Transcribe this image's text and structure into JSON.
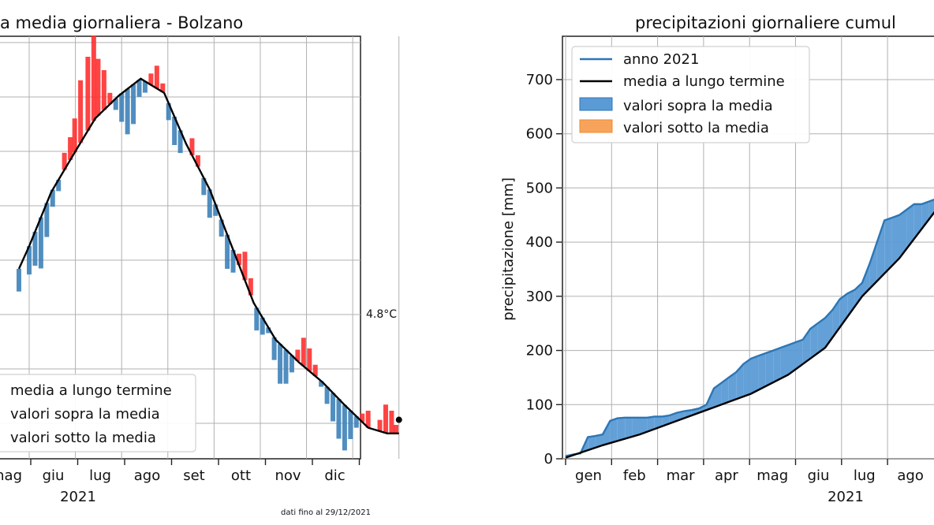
{
  "footnote": "dati fino al 29/12/2021",
  "chart_data": [
    {
      "type": "bar",
      "title": "a media giornaliera - Bolzano",
      "xlabel": "2021",
      "ylabel": "",
      "month_labels": [
        "mag",
        "giu",
        "lug",
        "ago",
        "set",
        "ott",
        "nov",
        "dic"
      ],
      "last_value_label": "4.8°C",
      "legend": [
        "media a lungo termine",
        "valori sopra la media",
        "valori sotto la media"
      ],
      "legend_placement": "bottom-left",
      "grid": true,
      "colors": {
        "mean": "#000000",
        "above": "#ff2b2b",
        "below": "#3a7fb8"
      },
      "mean_curve": [
        [
          -7,
          60
        ],
        [
          0,
          68
        ],
        [
          15,
          87
        ],
        [
          31,
          101
        ],
        [
          45,
          113
        ],
        [
          61,
          121
        ],
        [
          76,
          127
        ],
        [
          92,
          122
        ],
        [
          107,
          104
        ],
        [
          123,
          88
        ],
        [
          138,
          68
        ],
        [
          153,
          48
        ],
        [
          168,
          35
        ],
        [
          184,
          27
        ],
        [
          200,
          20
        ],
        [
          215,
          12
        ],
        [
          231,
          4
        ],
        [
          244,
          2
        ],
        [
          252,
          2
        ]
      ],
      "daily_deviation_segments": [
        [
          -7,
          -8
        ],
        [
          0,
          -10
        ],
        [
          4,
          -12
        ],
        [
          8,
          -18
        ],
        [
          12,
          -12
        ],
        [
          16,
          -6
        ],
        [
          20,
          -4
        ],
        [
          24,
          6
        ],
        [
          28,
          8
        ],
        [
          31,
          12
        ],
        [
          35,
          22
        ],
        [
          40,
          26
        ],
        [
          44,
          30
        ],
        [
          47,
          20
        ],
        [
          51,
          14
        ],
        [
          55,
          4
        ],
        [
          59,
          -4
        ],
        [
          63,
          -10
        ],
        [
          67,
          -16
        ],
        [
          71,
          -14
        ],
        [
          75,
          -6
        ],
        [
          79,
          -4
        ],
        [
          83,
          4
        ],
        [
          87,
          8
        ],
        [
          91,
          3
        ],
        [
          95,
          -6
        ],
        [
          99,
          -10
        ],
        [
          103,
          -8
        ],
        [
          107,
          0
        ],
        [
          111,
          6
        ],
        [
          115,
          4
        ],
        [
          119,
          -6
        ],
        [
          123,
          -10
        ],
        [
          127,
          -4
        ],
        [
          131,
          -6
        ],
        [
          135,
          -12
        ],
        [
          139,
          -8
        ],
        [
          143,
          4
        ],
        [
          147,
          10
        ],
        [
          151,
          6
        ],
        [
          155,
          -8
        ],
        [
          159,
          -6
        ],
        [
          163,
          -2
        ],
        [
          167,
          -8
        ],
        [
          171,
          -14
        ],
        [
          175,
          -12
        ],
        [
          179,
          -6
        ],
        [
          183,
          4
        ],
        [
          187,
          10
        ],
        [
          191,
          8
        ],
        [
          195,
          4
        ],
        [
          199,
          -2
        ],
        [
          203,
          -6
        ],
        [
          207,
          -10
        ],
        [
          211,
          -14
        ],
        [
          215,
          -16
        ],
        [
          219,
          -10
        ],
        [
          223,
          -4
        ],
        [
          227,
          3
        ],
        [
          231,
          6
        ],
        [
          235,
          0
        ],
        [
          239,
          4
        ],
        [
          243,
          10
        ],
        [
          247,
          8
        ],
        [
          250,
          3
        ]
      ],
      "last_point": [
        252,
        4.8
      ]
    },
    {
      "type": "area",
      "title": "precipitazioni giornaliere cumul",
      "xlabel": "2021",
      "ylabel": "precipitazione [mm]",
      "categories": [
        "gen",
        "feb",
        "mar",
        "apr",
        "mag",
        "giu",
        "lug",
        "ago"
      ],
      "yticks": [
        0,
        100,
        200,
        300,
        400,
        500,
        600,
        700
      ],
      "ylim": [
        0,
        780
      ],
      "legend": [
        "anno 2021",
        "media a lungo termine",
        "valori sopra la media",
        "valori sotto la media"
      ],
      "legend_placement": "top-left",
      "grid": true,
      "colors": {
        "year": "#1f77b4",
        "mean": "#000000",
        "above": "#1f77b4",
        "below": "#ff7f0e"
      },
      "series": [
        {
          "name": "anno 2021",
          "x": [
            0,
            1,
            2,
            3,
            4,
            5,
            6,
            7,
            8,
            9,
            10,
            11,
            12,
            13,
            14,
            15,
            16,
            17,
            18,
            19,
            20,
            21,
            22,
            23,
            24,
            25,
            26,
            27,
            28,
            29,
            30,
            31,
            32,
            33,
            34,
            35,
            36,
            37,
            38,
            39,
            40,
            41,
            42,
            43,
            44,
            45,
            46,
            47,
            48,
            49,
            50
          ],
          "values": [
            5,
            8,
            10,
            40,
            42,
            45,
            70,
            75,
            76,
            76,
            76,
            76,
            78,
            78,
            80,
            85,
            88,
            90,
            93,
            100,
            130,
            140,
            150,
            160,
            175,
            185,
            190,
            195,
            200,
            205,
            210,
            215,
            220,
            240,
            250,
            260,
            275,
            295,
            305,
            312,
            325,
            360,
            400,
            440,
            445,
            450,
            460,
            470,
            470,
            475,
            480
          ]
        },
        {
          "name": "media a lungo termine",
          "x": [
            0,
            5,
            10,
            15,
            20,
            25,
            30,
            35,
            40,
            45,
            50
          ],
          "values": [
            2,
            25,
            45,
            70,
            95,
            120,
            155,
            205,
            300,
            370,
            460
          ]
        }
      ]
    }
  ]
}
